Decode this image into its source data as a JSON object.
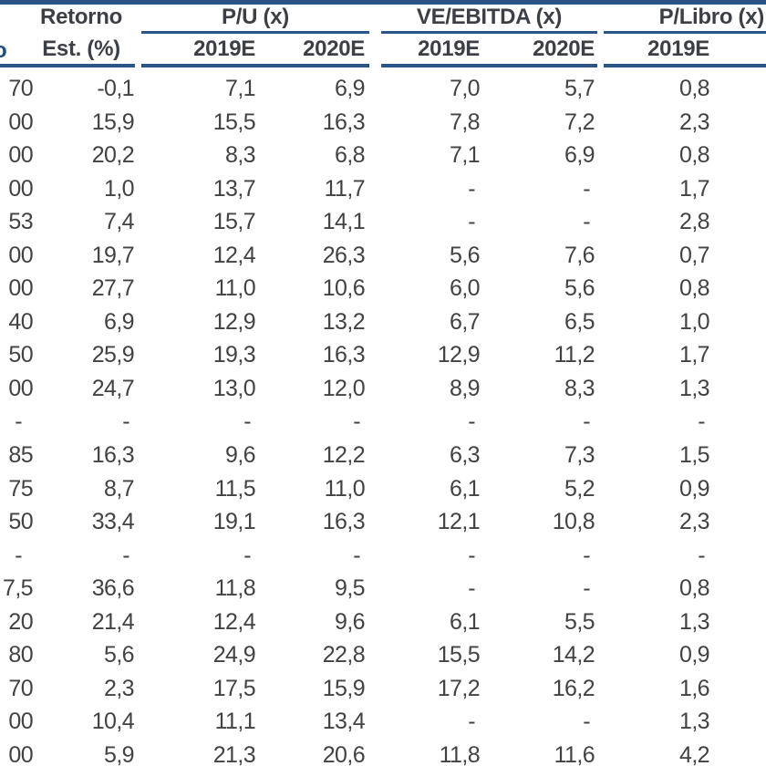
{
  "table": {
    "header": {
      "partial_left_text": "o",
      "retorno_line1": "Retorno",
      "retorno_line2": "Est. (%)",
      "groups": [
        {
          "label": "P/U (x)",
          "subcols": [
            "2019E",
            "2020E"
          ]
        },
        {
          "label": "VE/EBITDA (x)",
          "subcols": [
            "2019E",
            "2020E"
          ]
        },
        {
          "label": "P/Libro (x)",
          "subcols": [
            "2019E"
          ]
        }
      ]
    },
    "rows": [
      [
        "70",
        "-0,1",
        "7,1",
        "6,9",
        "7,0",
        "5,7",
        "0,8"
      ],
      [
        "00",
        "15,9",
        "15,5",
        "16,3",
        "7,8",
        "7,2",
        "2,3"
      ],
      [
        "00",
        "20,2",
        "8,3",
        "6,8",
        "7,1",
        "6,9",
        "0,8"
      ],
      [
        "00",
        "1,0",
        "13,7",
        "11,7",
        "-",
        "-",
        "1,7"
      ],
      [
        "53",
        "7,4",
        "15,7",
        "14,1",
        "-",
        "-",
        "2,8"
      ],
      [
        "00",
        "19,7",
        "12,4",
        "26,3",
        "5,6",
        "7,6",
        "0,7"
      ],
      [
        "00",
        "27,7",
        "11,0",
        "10,6",
        "6,0",
        "5,6",
        "0,8"
      ],
      [
        "40",
        "6,9",
        "12,9",
        "13,2",
        "6,7",
        "6,5",
        "1,0"
      ],
      [
        "50",
        "25,9",
        "19,3",
        "16,3",
        "12,9",
        "11,2",
        "1,7"
      ],
      [
        "00",
        "24,7",
        "13,0",
        "12,0",
        "8,9",
        "8,3",
        "1,3"
      ],
      [
        "-",
        "-",
        "-",
        "-",
        "-",
        "-",
        "-"
      ],
      [
        "85",
        "16,3",
        "9,6",
        "12,2",
        "6,3",
        "7,3",
        "1,5"
      ],
      [
        "75",
        "8,7",
        "11,5",
        "11,0",
        "6,1",
        "5,2",
        "0,9"
      ],
      [
        "50",
        "33,4",
        "19,1",
        "16,3",
        "12,1",
        "10,8",
        "2,3"
      ],
      [
        "-",
        "-",
        "-",
        "-",
        "-",
        "-",
        "-"
      ],
      [
        "7,5",
        "36,6",
        "11,8",
        "9,5",
        "-",
        "-",
        "0,8"
      ],
      [
        "20",
        "21,4",
        "12,4",
        "9,6",
        "6,1",
        "5,5",
        "1,3"
      ],
      [
        "80",
        "5,6",
        "24,9",
        "22,8",
        "15,5",
        "14,2",
        "0,9"
      ],
      [
        "70",
        "2,3",
        "17,5",
        "15,9",
        "17,2",
        "16,2",
        "1,6"
      ],
      [
        "00",
        "10,4",
        "11,1",
        "13,4",
        "-",
        "-",
        "1,3"
      ],
      [
        "00",
        "5,9",
        "21,3",
        "20,6",
        "11,8",
        "11,6",
        "4,2"
      ]
    ]
  },
  "colors": {
    "rule_line": "#2b5586",
    "header_text": "#3c3f45",
    "body_text": "#424242",
    "partial_glyph": "#1f4e79",
    "background": "#ffffff"
  }
}
